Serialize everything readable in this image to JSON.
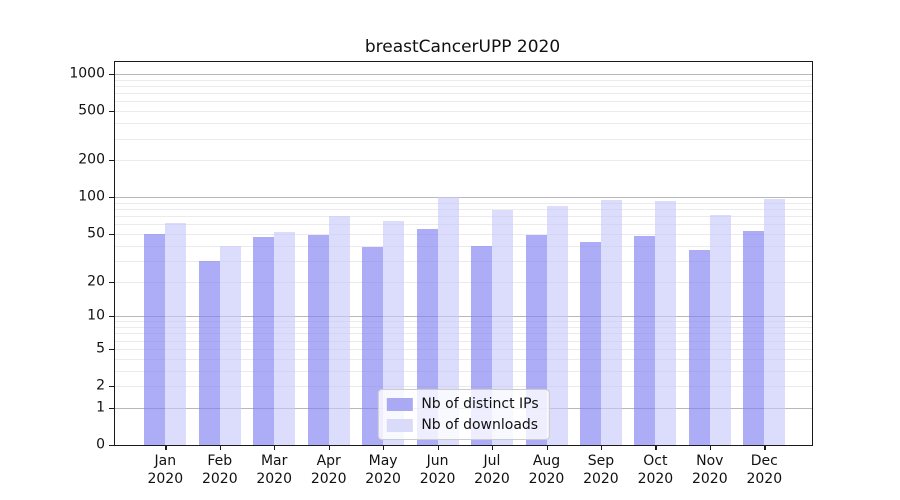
{
  "figure": {
    "background": "#ffffff",
    "text_color": "#111111"
  },
  "chart_data": {
    "type": "bar",
    "title": "breastCancerUPP 2020",
    "categories": [
      "Jan",
      "Feb",
      "Mar",
      "Apr",
      "May",
      "Jun",
      "Jul",
      "Aug",
      "Sep",
      "Oct",
      "Nov",
      "Dec"
    ],
    "category_year": "2020",
    "series": [
      {
        "name": "Nb of distinct IPs",
        "color": "#a9a9f4",
        "fill_rgba": "rgba(128,128,242,0.65)",
        "values": [
          50,
          30,
          47,
          49,
          39,
          55,
          40,
          49,
          43,
          48,
          37,
          53
        ]
      },
      {
        "name": "Nb of downloads",
        "color": "#dadaf9",
        "fill_rgba": "rgba(198,198,250,0.62)",
        "values": [
          61,
          40,
          52,
          70,
          64,
          101,
          79,
          85,
          95,
          93,
          72,
          96
        ]
      }
    ],
    "y_scale": "log1p",
    "ylim": [
      0,
      1250
    ],
    "y_ticks": [
      0,
      1,
      2,
      5,
      10,
      20,
      50,
      100,
      200,
      500,
      1000
    ],
    "y_major_gridlines": [
      1,
      10,
      100,
      1000
    ],
    "y_minor_gridlines": [
      2,
      3,
      4,
      5,
      6,
      7,
      8,
      9,
      20,
      30,
      40,
      50,
      60,
      70,
      80,
      90,
      200,
      300,
      400,
      500,
      600,
      700,
      800,
      900
    ],
    "grid": "on",
    "xlabel": "",
    "ylabel": "",
    "legend_position": "lower center"
  }
}
